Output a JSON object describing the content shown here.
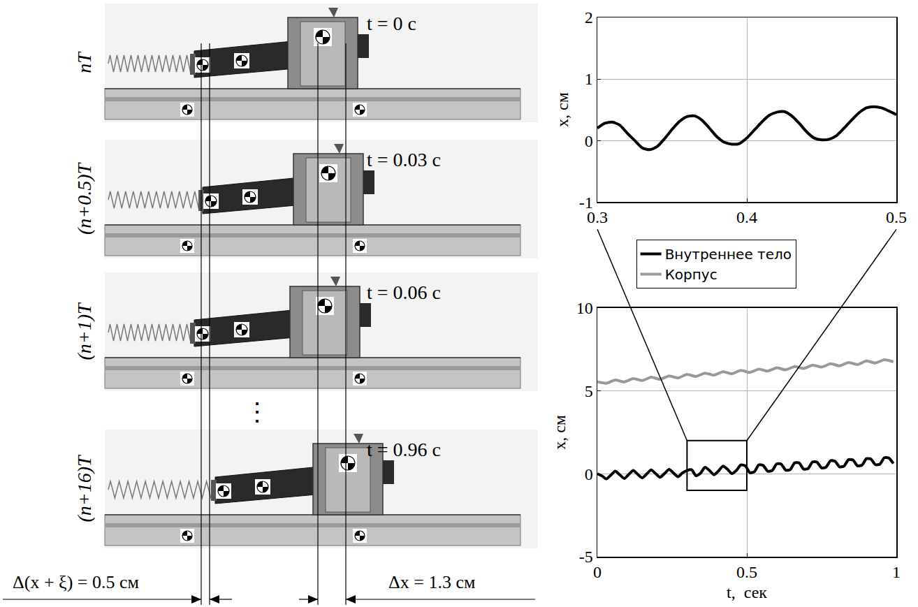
{
  "photo_panel": {
    "frames": [
      {
        "label": "nT",
        "time": "t = 0 с"
      },
      {
        "label": "(n+0.5)T",
        "time": "t = 0.03 с"
      },
      {
        "label": "(n+1)T",
        "time": "t = 0.06 с"
      },
      {
        "label": "(n+16)T",
        "time": "t = 0.96 с"
      }
    ],
    "ellipsis": "⋮",
    "measurements": [
      {
        "label": "Δ(x + ξ) = 0.5 см"
      },
      {
        "label": "Δx = 1.3 см"
      }
    ]
  },
  "chart_data": [
    {
      "type": "line",
      "y_label": "x, см",
      "xlim": [
        0.3,
        0.5
      ],
      "xticks": [
        0.3,
        0.4,
        0.5
      ],
      "ylim": [
        -1,
        2
      ],
      "yticks": [
        -1,
        0,
        1,
        2
      ],
      "grid": true,
      "series": [
        {
          "color": "#000000",
          "x": [
            0.3,
            0.305,
            0.31,
            0.315,
            0.32,
            0.325,
            0.33,
            0.335,
            0.34,
            0.345,
            0.35,
            0.355,
            0.36,
            0.365,
            0.37,
            0.375,
            0.38,
            0.385,
            0.39,
            0.395,
            0.4,
            0.405,
            0.41,
            0.415,
            0.42,
            0.425,
            0.43,
            0.435,
            0.44,
            0.445,
            0.45,
            0.455,
            0.46,
            0.465,
            0.47,
            0.475,
            0.48,
            0.485,
            0.49,
            0.495,
            0.5
          ],
          "values": [
            0.2,
            0.28,
            0.3,
            0.25,
            0.12,
            0,
            -0.12,
            -0.15,
            -0.1,
            0.03,
            0.18,
            0.31,
            0.39,
            0.4,
            0.33,
            0.2,
            0.06,
            -0.03,
            -0.06,
            -0.05,
            0.04,
            0.17,
            0.3,
            0.41,
            0.46,
            0.47,
            0.4,
            0.28,
            0.14,
            0.04,
            0.01,
            0.02,
            0.08,
            0.2,
            0.33,
            0.45,
            0.53,
            0.55,
            0.53,
            0.48,
            0.42
          ]
        }
      ]
    },
    {
      "type": "line",
      "x_label": "t,  сек",
      "y_label": "x, см",
      "xlim": [
        0,
        1
      ],
      "xticks": [
        0,
        0.5,
        1
      ],
      "ylim": [
        -5,
        10
      ],
      "yticks": [
        -5,
        0,
        5,
        10
      ],
      "grid": true,
      "legend": "top",
      "series": [
        {
          "name": "Внутреннее тело",
          "color": "#000000",
          "x": [
            0,
            0.015,
            0.03,
            0.045,
            0.06,
            0.075,
            0.09,
            0.105,
            0.12,
            0.135,
            0.15,
            0.165,
            0.18,
            0.195,
            0.21,
            0.225,
            0.24,
            0.255,
            0.27,
            0.285,
            0.3,
            0.315,
            0.33,
            0.345,
            0.36,
            0.375,
            0.39,
            0.405,
            0.42,
            0.435,
            0.45,
            0.465,
            0.48,
            0.495,
            0.51,
            0.525,
            0.54,
            0.555,
            0.57,
            0.585,
            0.6,
            0.615,
            0.63,
            0.645,
            0.66,
            0.675,
            0.69,
            0.705,
            0.72,
            0.735,
            0.75,
            0.765,
            0.78,
            0.795,
            0.81,
            0.825,
            0.84,
            0.855,
            0.87,
            0.885,
            0.9,
            0.915,
            0.93,
            0.945,
            0.96,
            0.975,
            0.99
          ],
          "values": [
            0,
            -0.12,
            -0.31,
            -0.08,
            0.16,
            -0.06,
            -0.28,
            -0.04,
            0.2,
            -0.03,
            -0.25,
            -0.01,
            0.23,
            0.01,
            -0.21,
            0.02,
            0.26,
            0.04,
            -0.18,
            0.06,
            0.2,
            0.25,
            -0.12,
            0.03,
            0.39,
            0.2,
            -0.06,
            0.17,
            0.46,
            0.28,
            0.01,
            0.2,
            0.53,
            0.48,
            0.07,
            0.12,
            0.54,
            0.5,
            0.15,
            0.2,
            0.6,
            0.58,
            0.22,
            0.25,
            0.66,
            0.65,
            0.28,
            0.32,
            0.72,
            0.7,
            0.35,
            0.4,
            0.79,
            0.76,
            0.42,
            0.46,
            0.85,
            0.83,
            0.48,
            0.52,
            0.91,
            0.89,
            0.55,
            0.58,
            0.97,
            0.95,
            0.62
          ]
        },
        {
          "name": "Корпус",
          "color": "#999999",
          "x": [
            0,
            0.03,
            0.06,
            0.09,
            0.12,
            0.15,
            0.18,
            0.21,
            0.24,
            0.27,
            0.3,
            0.33,
            0.36,
            0.39,
            0.42,
            0.45,
            0.48,
            0.51,
            0.54,
            0.57,
            0.6,
            0.63,
            0.66,
            0.69,
            0.72,
            0.75,
            0.78,
            0.81,
            0.84,
            0.87,
            0.9,
            0.93,
            0.96,
            0.99
          ],
          "values": [
            5.55,
            5.46,
            5.66,
            5.54,
            5.74,
            5.62,
            5.82,
            5.7,
            5.9,
            5.78,
            5.99,
            5.87,
            6.07,
            5.95,
            6.15,
            6.03,
            6.23,
            6.11,
            6.31,
            6.19,
            6.39,
            6.27,
            6.47,
            6.35,
            6.55,
            6.43,
            6.63,
            6.51,
            6.71,
            6.59,
            6.8,
            6.68,
            6.88,
            6.76
          ]
        }
      ]
    }
  ]
}
